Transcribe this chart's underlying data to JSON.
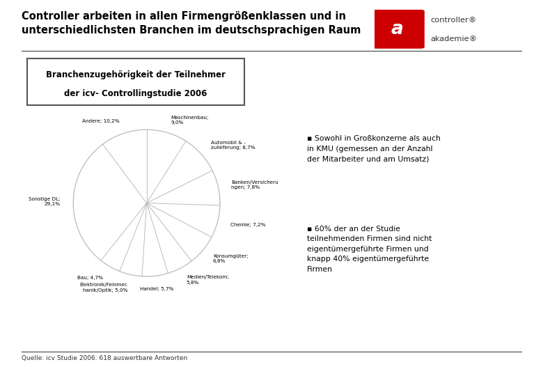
{
  "title_line1": "Controller arbeiten in allen Firmengrößenklassen und in",
  "title_line2": "unterschiedlichsten Branchen im deutschsprachigen Raum",
  "box_title_line1": "Branchenzugehörigkeit der Teilnehmer",
  "box_title_line2": "der icv- Controllingstudie 2006",
  "source": "Quelle: icv Studie 2006: 618 auswertbare Antworten",
  "bullet1": "Sowohl in Großkonzerne als auch\nin KMU (gemessen an der Anzahl\nder Mitarbeiter und am Umsatz)",
  "bullet2": "60% der an der Studie\nteilnehmenden Firmen sind nicht\neigentümergeführte Firmen und\nknapp 40% eigentümergeführte\nFirmen",
  "segments": [
    {
      "label": "Maschinenbau;\n9,0%",
      "value": 9.0
    },
    {
      "label": "Automobil & -\nzulieferung; 8,7%",
      "value": 8.7
    },
    {
      "label": "Banken/Versicheru\nngen; 7,8%",
      "value": 7.8
    },
    {
      "label": "Chemie; 7,2%",
      "value": 7.2
    },
    {
      "label": "Konsumgüter;\n6,8%",
      "value": 6.8
    },
    {
      "label": "Medien/Telekom;\n5,8%",
      "value": 5.8
    },
    {
      "label": "Handel; 5,7%",
      "value": 5.7
    },
    {
      "label": "Elektronik/Feinmec\nhanik/Optik; 5,0%",
      "value": 5.0
    },
    {
      "label": "Bau; 4,7%",
      "value": 4.7
    },
    {
      "label": "Sonstige DL;\n29,1%",
      "value": 29.1
    },
    {
      "label": "Andere; 10,2%",
      "value": 10.2
    }
  ],
  "spider_color": "#bbbbbb",
  "background_color": "#ffffff",
  "text_color": "#000000",
  "title_color": "#000000",
  "box_border_color": "#555555",
  "line_color": "#444444"
}
